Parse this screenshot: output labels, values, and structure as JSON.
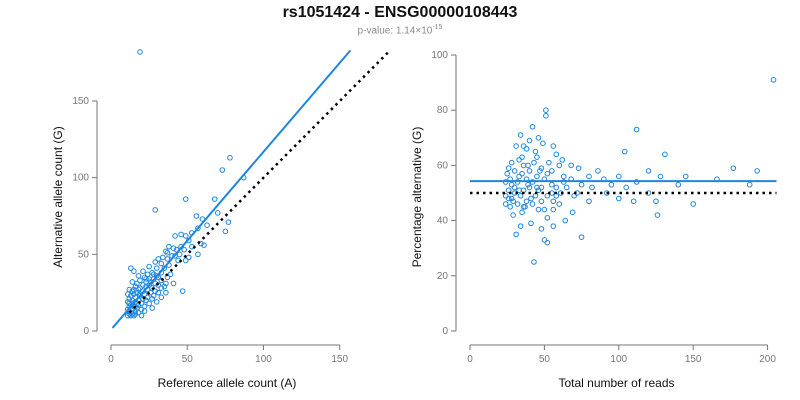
{
  "header": {
    "title": "rs1051424 - ENSG00000108443",
    "pvalue_prefix": "p-value: 1.14×10",
    "pvalue_exponent": "-15"
  },
  "colors": {
    "points": "#1f86e0",
    "fit_line": "#1f86e0",
    "reference_line": "#000000"
  },
  "chart_data": [
    {
      "type": "scatter",
      "title": "",
      "xlabel": "Reference allele count (A)",
      "ylabel": "Alternative allele count (G)",
      "xlim": [
        0,
        160
      ],
      "ylim": [
        0,
        180
      ],
      "xticks": [
        0,
        50,
        100,
        150
      ],
      "yticks": [
        0,
        50,
        100,
        150
      ],
      "grid": false,
      "fit_line": {
        "from": [
          1,
          2
        ],
        "to": [
          157,
          183
        ]
      },
      "reference_line": {
        "from": [
          12,
          12
        ],
        "to": [
          182,
          182
        ],
        "style": "dotted"
      },
      "points": [
        [
          19,
          182
        ],
        [
          78,
          113
        ],
        [
          73,
          105
        ],
        [
          87,
          100
        ],
        [
          49,
          86
        ],
        [
          68,
          86
        ],
        [
          29,
          79
        ],
        [
          70,
          77
        ],
        [
          56,
          75
        ],
        [
          60,
          73
        ],
        [
          77,
          71
        ],
        [
          63,
          69
        ],
        [
          57,
          67
        ],
        [
          75,
          65
        ],
        [
          53,
          64
        ],
        [
          46,
          63
        ],
        [
          49,
          62
        ],
        [
          42,
          62
        ],
        [
          51,
          59
        ],
        [
          59,
          57
        ],
        [
          38,
          55
        ],
        [
          46,
          55
        ],
        [
          53,
          55
        ],
        [
          61,
          56
        ],
        [
          41,
          54
        ],
        [
          43,
          53
        ],
        [
          48,
          53
        ],
        [
          36,
          52
        ],
        [
          37,
          51
        ],
        [
          45,
          50
        ],
        [
          57,
          50
        ],
        [
          40,
          49
        ],
        [
          42,
          49
        ],
        [
          51,
          48
        ],
        [
          34,
          48
        ],
        [
          37,
          47
        ],
        [
          31,
          47
        ],
        [
          44,
          46
        ],
        [
          49,
          46
        ],
        [
          29,
          45
        ],
        [
          33,
          44
        ],
        [
          38,
          43
        ],
        [
          25,
          42
        ],
        [
          30,
          41
        ],
        [
          35,
          41
        ],
        [
          13,
          41
        ],
        [
          15,
          39
        ],
        [
          21,
          39
        ],
        [
          27,
          38
        ],
        [
          33,
          38
        ],
        [
          39,
          37
        ],
        [
          24,
          37
        ],
        [
          18,
          36
        ],
        [
          30,
          36
        ],
        [
          22,
          35
        ],
        [
          37,
          35
        ],
        [
          25,
          34
        ],
        [
          28,
          34
        ],
        [
          33,
          33
        ],
        [
          19,
          33
        ],
        [
          14,
          32
        ],
        [
          23,
          32
        ],
        [
          36,
          31
        ],
        [
          41,
          31
        ],
        [
          17,
          31
        ],
        [
          29,
          31
        ],
        [
          21,
          30
        ],
        [
          25,
          30
        ],
        [
          31,
          30
        ],
        [
          35,
          29
        ],
        [
          16,
          29
        ],
        [
          23,
          29
        ],
        [
          27,
          28
        ],
        [
          19,
          28
        ],
        [
          33,
          28
        ],
        [
          12,
          27
        ],
        [
          18,
          27
        ],
        [
          24,
          27
        ],
        [
          29,
          26
        ],
        [
          14,
          26
        ],
        [
          21,
          26
        ],
        [
          47,
          26
        ],
        [
          36,
          25
        ],
        [
          17,
          25
        ],
        [
          26,
          25
        ],
        [
          31,
          25
        ],
        [
          11,
          24
        ],
        [
          15,
          24
        ],
        [
          22,
          24
        ],
        [
          28,
          23
        ],
        [
          13,
          23
        ],
        [
          19,
          23
        ],
        [
          24,
          22
        ],
        [
          33,
          22
        ],
        [
          16,
          22
        ],
        [
          12,
          21
        ],
        [
          21,
          21
        ],
        [
          27,
          21
        ],
        [
          18,
          20
        ],
        [
          14,
          20
        ],
        [
          23,
          20
        ],
        [
          30,
          19
        ],
        [
          11,
          19
        ],
        [
          16,
          19
        ],
        [
          20,
          18
        ],
        [
          25,
          18
        ],
        [
          13,
          17
        ],
        [
          18,
          17
        ],
        [
          22,
          16
        ],
        [
          12,
          16
        ],
        [
          15,
          16
        ],
        [
          27,
          15
        ],
        [
          17,
          15
        ],
        [
          20,
          14
        ],
        [
          11,
          14
        ],
        [
          14,
          14
        ],
        [
          22,
          13
        ],
        [
          16,
          13
        ],
        [
          13,
          12
        ],
        [
          18,
          12
        ],
        [
          12,
          11
        ],
        [
          14,
          11
        ],
        [
          16,
          11
        ],
        [
          11,
          10
        ],
        [
          13,
          10
        ],
        [
          20,
          10
        ],
        [
          15,
          10
        ],
        [
          12,
          13
        ],
        [
          17,
          18
        ],
        [
          19,
          24
        ],
        [
          26,
          32
        ],
        [
          31,
          35
        ],
        [
          28,
          37
        ],
        [
          23,
          34
        ],
        [
          15,
          27
        ],
        [
          12,
          18
        ],
        [
          16,
          16
        ],
        [
          14,
          18
        ]
      ]
    },
    {
      "type": "scatter",
      "title": "",
      "xlabel": "Total number of reads",
      "ylabel": "Percentage alternative (G)",
      "xlim": [
        0,
        205
      ],
      "ylim": [
        0,
        100
      ],
      "xticks": [
        0,
        50,
        100,
        150,
        200
      ],
      "yticks": [
        0,
        20,
        40,
        60,
        80,
        100
      ],
      "grid": false,
      "fit_line": {
        "from": [
          0,
          54.3
        ],
        "to": [
          206,
          54.3
        ]
      },
      "reference_line": {
        "from": [
          0,
          50
        ],
        "to": [
          206,
          50
        ],
        "style": "dotted"
      },
      "points": [
        [
          204,
          91
        ],
        [
          51,
          80
        ],
        [
          51,
          78
        ],
        [
          112,
          73
        ],
        [
          42,
          74
        ],
        [
          46,
          70
        ],
        [
          40,
          69
        ],
        [
          34,
          71
        ],
        [
          49,
          68
        ],
        [
          36,
          67
        ],
        [
          38,
          66
        ],
        [
          31,
          67
        ],
        [
          56,
          67
        ],
        [
          58,
          64
        ],
        [
          104,
          65
        ],
        [
          131,
          64
        ],
        [
          62,
          62
        ],
        [
          45,
          63
        ],
        [
          33,
          62
        ],
        [
          28,
          61
        ],
        [
          43,
          61
        ],
        [
          53,
          61
        ],
        [
          60,
          60
        ],
        [
          68,
          60
        ],
        [
          36,
          60
        ],
        [
          26,
          59
        ],
        [
          48,
          59
        ],
        [
          73,
          59
        ],
        [
          30,
          58
        ],
        [
          40,
          58
        ],
        [
          55,
          58
        ],
        [
          86,
          58
        ],
        [
          120,
          58
        ],
        [
          177,
          59
        ],
        [
          193,
          58
        ],
        [
          25,
          57
        ],
        [
          35,
          57
        ],
        [
          45,
          56
        ],
        [
          63,
          56
        ],
        [
          80,
          56
        ],
        [
          100,
          56
        ],
        [
          128,
          56
        ],
        [
          145,
          56
        ],
        [
          27,
          55
        ],
        [
          38,
          55
        ],
        [
          50,
          55
        ],
        [
          68,
          55
        ],
        [
          90,
          55
        ],
        [
          112,
          54
        ],
        [
          166,
          55
        ],
        [
          188,
          53
        ],
        [
          24,
          54
        ],
        [
          32,
          54
        ],
        [
          42,
          54
        ],
        [
          55,
          53
        ],
        [
          75,
          53
        ],
        [
          95,
          53
        ],
        [
          140,
          53
        ],
        [
          30,
          52
        ],
        [
          40,
          52
        ],
        [
          48,
          52
        ],
        [
          58,
          52
        ],
        [
          65,
          52
        ],
        [
          82,
          52
        ],
        [
          105,
          52
        ],
        [
          26,
          51
        ],
        [
          36,
          51
        ],
        [
          46,
          51
        ],
        [
          61,
          50
        ],
        [
          72,
          50
        ],
        [
          92,
          50
        ],
        [
          120,
          50
        ],
        [
          30,
          50
        ],
        [
          24,
          49
        ],
        [
          34,
          49
        ],
        [
          44,
          49
        ],
        [
          52,
          49
        ],
        [
          70,
          49
        ],
        [
          100,
          48
        ],
        [
          28,
          48
        ],
        [
          38,
          47
        ],
        [
          48,
          47
        ],
        [
          56,
          47
        ],
        [
          80,
          47
        ],
        [
          110,
          47
        ],
        [
          125,
          47
        ],
        [
          24,
          46
        ],
        [
          32,
          46
        ],
        [
          42,
          46
        ],
        [
          60,
          46
        ],
        [
          150,
          46
        ],
        [
          27,
          45
        ],
        [
          37,
          45
        ],
        [
          46,
          44
        ],
        [
          56,
          44
        ],
        [
          69,
          43
        ],
        [
          35,
          43
        ],
        [
          29,
          42
        ],
        [
          52,
          41
        ],
        [
          64,
          40
        ],
        [
          126,
          42
        ],
        [
          41,
          39
        ],
        [
          56,
          38
        ],
        [
          34,
          38
        ],
        [
          48,
          37
        ],
        [
          31,
          35
        ],
        [
          75,
          34
        ],
        [
          50,
          33
        ],
        [
          52,
          32
        ],
        [
          43,
          25
        ],
        [
          39,
          60
        ],
        [
          33,
          56
        ],
        [
          47,
          58
        ],
        [
          35,
          63
        ],
        [
          44,
          65
        ],
        [
          52,
          57
        ],
        [
          28,
          53
        ],
        [
          41,
          48
        ],
        [
          36,
          45
        ],
        [
          50,
          44
        ],
        [
          29,
          47
        ],
        [
          45,
          52
        ],
        [
          55,
          50
        ],
        [
          63,
          54
        ],
        [
          33,
          51
        ],
        [
          26,
          48
        ],
        [
          39,
          53
        ],
        [
          58,
          49
        ]
      ]
    }
  ]
}
